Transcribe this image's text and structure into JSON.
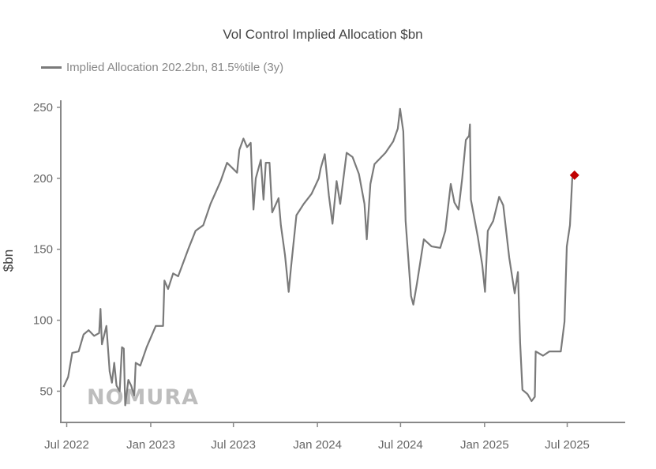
{
  "chart_data": {
    "type": "line",
    "title": "Vol Control Implied Allocation $bn",
    "ylabel": "$bn",
    "xlabel": "",
    "legend": {
      "placement": "top-left",
      "entries": [
        "Implied Allocation 202.2bn, 81.5%tile (3y)"
      ]
    },
    "watermark": "NOMURA",
    "grid": false,
    "xlim": [
      "2022-06-18",
      "2025-11-05"
    ],
    "ylim": [
      28,
      255
    ],
    "y_ticks": [
      50,
      100,
      150,
      200,
      250
    ],
    "x_ticks": [
      {
        "date": "2022-07-01",
        "label": "Jul 2022"
      },
      {
        "date": "2023-01-01",
        "label": "Jan 2023"
      },
      {
        "date": "2023-07-01",
        "label": "Jul 2023"
      },
      {
        "date": "2024-01-01",
        "label": "Jan 2024"
      },
      {
        "date": "2024-07-01",
        "label": "Jul 2024"
      },
      {
        "date": "2025-01-01",
        "label": "Jan 2025"
      },
      {
        "date": "2025-07-01",
        "label": "Jul 2025"
      }
    ],
    "colors": {
      "line": "#7a7a7a",
      "last_point": "#c00000",
      "axis": "#888888"
    },
    "series": [
      {
        "name": "Implied Allocation 202.2bn, 81.5%tile (3y)",
        "points": [
          [
            "2022-06-24",
            53
          ],
          [
            "2022-07-04",
            60
          ],
          [
            "2022-07-13",
            77
          ],
          [
            "2022-07-27",
            78
          ],
          [
            "2022-08-07",
            90
          ],
          [
            "2022-08-18",
            93
          ],
          [
            "2022-08-30",
            89
          ],
          [
            "2022-09-10",
            91
          ],
          [
            "2022-09-13",
            108
          ],
          [
            "2022-09-16",
            83
          ],
          [
            "2022-09-26",
            96
          ],
          [
            "2022-10-03",
            64
          ],
          [
            "2022-10-08",
            56
          ],
          [
            "2022-10-13",
            70
          ],
          [
            "2022-10-18",
            54
          ],
          [
            "2022-10-25",
            50
          ],
          [
            "2022-10-30",
            81
          ],
          [
            "2022-11-03",
            80
          ],
          [
            "2022-11-06",
            40
          ],
          [
            "2022-11-13",
            58
          ],
          [
            "2022-11-19",
            54
          ],
          [
            "2022-11-26",
            47
          ],
          [
            "2022-11-29",
            70
          ],
          [
            "2022-12-09",
            68
          ],
          [
            "2022-12-23",
            81
          ],
          [
            "2023-01-12",
            96
          ],
          [
            "2023-01-28",
            96
          ],
          [
            "2023-01-31",
            128
          ],
          [
            "2023-02-08",
            122
          ],
          [
            "2023-02-19",
            133
          ],
          [
            "2023-03-02",
            131
          ],
          [
            "2023-03-24",
            150
          ],
          [
            "2023-04-09",
            163
          ],
          [
            "2023-04-26",
            167
          ],
          [
            "2023-05-12",
            182
          ],
          [
            "2023-06-03",
            198
          ],
          [
            "2023-06-17",
            211
          ],
          [
            "2023-07-09",
            204
          ],
          [
            "2023-07-14",
            220
          ],
          [
            "2023-07-23",
            228
          ],
          [
            "2023-07-31",
            222
          ],
          [
            "2023-08-08",
            225
          ],
          [
            "2023-08-11",
            198
          ],
          [
            "2023-08-14",
            178
          ],
          [
            "2023-08-19",
            200
          ],
          [
            "2023-08-30",
            213
          ],
          [
            "2023-09-05",
            185
          ],
          [
            "2023-09-10",
            211
          ],
          [
            "2023-09-18",
            211
          ],
          [
            "2023-09-24",
            176
          ],
          [
            "2023-10-08",
            186
          ],
          [
            "2023-10-13",
            167
          ],
          [
            "2023-10-22",
            146
          ],
          [
            "2023-10-30",
            120
          ],
          [
            "2023-11-04",
            137
          ],
          [
            "2023-11-16",
            174
          ],
          [
            "2023-12-02",
            182
          ],
          [
            "2023-12-19",
            189
          ],
          [
            "2024-01-04",
            200
          ],
          [
            "2024-01-08",
            207
          ],
          [
            "2024-01-17",
            217
          ],
          [
            "2024-01-26",
            188
          ],
          [
            "2024-02-03",
            168
          ],
          [
            "2024-02-12",
            198
          ],
          [
            "2024-02-20",
            182
          ],
          [
            "2024-03-05",
            218
          ],
          [
            "2024-03-18",
            215
          ],
          [
            "2024-04-01",
            203
          ],
          [
            "2024-04-13",
            182
          ],
          [
            "2024-04-18",
            157
          ],
          [
            "2024-04-26",
            196
          ],
          [
            "2024-05-05",
            210
          ],
          [
            "2024-05-29",
            218
          ],
          [
            "2024-06-15",
            226
          ],
          [
            "2024-06-25",
            235
          ],
          [
            "2024-06-30",
            249
          ],
          [
            "2024-07-07",
            233
          ],
          [
            "2024-07-12",
            170
          ],
          [
            "2024-07-24",
            117
          ],
          [
            "2024-07-29",
            111
          ],
          [
            "2024-08-06",
            126
          ],
          [
            "2024-08-21",
            157
          ],
          [
            "2024-09-07",
            152
          ],
          [
            "2024-09-26",
            151
          ],
          [
            "2024-10-07",
            163
          ],
          [
            "2024-10-19",
            196
          ],
          [
            "2024-10-27",
            183
          ],
          [
            "2024-11-05",
            178
          ],
          [
            "2024-11-13",
            200
          ],
          [
            "2024-11-21",
            227
          ],
          [
            "2024-11-28",
            230
          ],
          [
            "2024-11-30",
            238
          ],
          [
            "2024-12-02",
            185
          ],
          [
            "2024-12-17",
            159
          ],
          [
            "2024-12-27",
            139
          ],
          [
            "2025-01-02",
            120
          ],
          [
            "2025-01-08",
            163
          ],
          [
            "2025-01-20",
            170
          ],
          [
            "2025-02-02",
            187
          ],
          [
            "2025-02-11",
            181
          ],
          [
            "2025-02-24",
            144
          ],
          [
            "2025-03-08",
            119
          ],
          [
            "2025-03-15",
            134
          ],
          [
            "2025-03-20",
            84
          ],
          [
            "2025-03-25",
            51
          ],
          [
            "2025-04-05",
            48
          ],
          [
            "2025-04-14",
            43
          ],
          [
            "2025-04-21",
            46
          ],
          [
            "2025-04-23",
            78
          ],
          [
            "2025-05-09",
            75
          ],
          [
            "2025-05-23",
            78
          ],
          [
            "2025-06-17",
            78
          ],
          [
            "2025-06-25",
            99
          ],
          [
            "2025-06-30",
            152
          ],
          [
            "2025-07-07",
            167
          ],
          [
            "2025-07-12",
            200
          ],
          [
            "2025-07-17",
            202.2
          ]
        ]
      }
    ]
  }
}
